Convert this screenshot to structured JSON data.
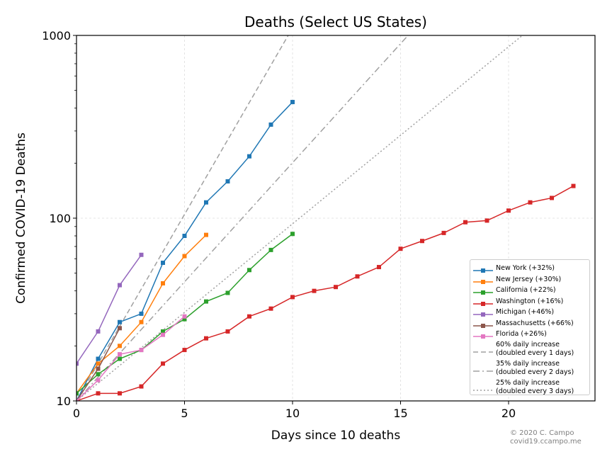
{
  "chart_data": {
    "type": "line",
    "title": "Deaths (Select US States)",
    "xlabel": "Days since 10 deaths",
    "ylabel": "Confirmed COVID-19 Deaths",
    "y_scale": "log",
    "xlim": [
      0,
      24
    ],
    "ylim": [
      10,
      1000
    ],
    "x_ticks": [
      0,
      5,
      10,
      15,
      20
    ],
    "y_ticks": [
      10,
      100,
      1000
    ],
    "grid": true,
    "legend_position": "lower-right",
    "series": [
      {
        "name": "New York (+32%)",
        "color": "#1f77b4",
        "x": [
          0,
          1,
          2,
          3,
          4,
          5,
          6,
          7,
          8,
          9,
          10
        ],
        "y": [
          10,
          17,
          27,
          30,
          57,
          80,
          122,
          159,
          218,
          325,
          432
        ]
      },
      {
        "name": "New Jersey (+30%)",
        "color": "#ff7f0e",
        "x": [
          0,
          1,
          2,
          3,
          4,
          5,
          6
        ],
        "y": [
          11,
          16,
          20,
          27,
          44,
          62,
          81
        ]
      },
      {
        "name": "California (+22%)",
        "color": "#2ca02c",
        "x": [
          0,
          1,
          2,
          3,
          4,
          5,
          6,
          7,
          8,
          9,
          10
        ],
        "y": [
          11,
          14,
          17,
          19,
          24,
          28,
          35,
          39,
          52,
          67,
          82
        ]
      },
      {
        "name": "Washington (+16%)",
        "color": "#d62728",
        "x": [
          0,
          1,
          2,
          3,
          4,
          5,
          6,
          7,
          8,
          9,
          10,
          11,
          12,
          13,
          14,
          15,
          16,
          17,
          18,
          19,
          20,
          21,
          22,
          23
        ],
        "y": [
          10,
          11,
          11,
          12,
          16,
          19,
          22,
          24,
          29,
          32,
          37,
          40,
          42,
          48,
          54,
          68,
          75,
          83,
          95,
          97,
          110,
          122,
          129,
          150
        ]
      },
      {
        "name": "Michigan (+46%)",
        "color": "#9467bd",
        "x": [
          0,
          1,
          2,
          3
        ],
        "y": [
          16,
          24,
          43,
          63
        ]
      },
      {
        "name": "Massachusetts (+66%)",
        "color": "#8c564b",
        "x": [
          0,
          1,
          2
        ],
        "y": [
          10,
          15,
          25
        ]
      },
      {
        "name": "Florida (+26%)",
        "color": "#e377c2",
        "x": [
          0,
          1,
          2,
          3,
          4,
          5
        ],
        "y": [
          10,
          13,
          18,
          19,
          23,
          29
        ]
      }
    ],
    "reference_lines": [
      {
        "label_line1": "60% daily increase",
        "label_line2": "(doubled every 1 days)",
        "rate": 0.6,
        "style": "dashed"
      },
      {
        "label_line1": "35% daily increase",
        "label_line2": "(doubled every 2 days)",
        "rate": 0.35,
        "style": "dashdot"
      },
      {
        "label_line1": "25% daily increase",
        "label_line2": "(doubled every 3 days)",
        "rate": 0.25,
        "style": "dotted"
      }
    ],
    "credit_line1": "© 2020 C. Campo",
    "credit_line2": "covid19.ccampo.me"
  }
}
